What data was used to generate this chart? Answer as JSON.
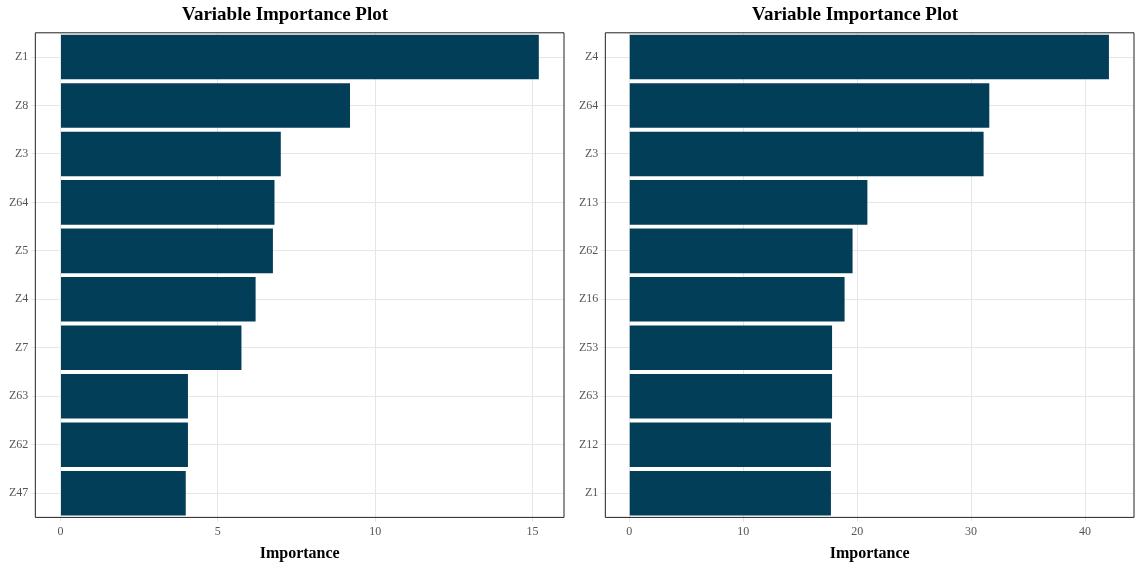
{
  "chart_data": [
    {
      "type": "bar",
      "orientation": "horizontal",
      "title": "Variable Importance Plot",
      "xlabel": "Importance",
      "categories": [
        "Z1",
        "Z8",
        "Z3",
        "Z64",
        "Z5",
        "Z4",
        "Z7",
        "Z63",
        "Z62",
        "Z47"
      ],
      "values": [
        15.2,
        9.2,
        7.0,
        6.8,
        6.75,
        6.2,
        5.75,
        4.05,
        4.05,
        3.98
      ],
      "color": "#023e58",
      "xlim": [
        -0.8,
        16
      ],
      "xticks": [
        0,
        5,
        10,
        15
      ],
      "grid": true
    },
    {
      "type": "bar",
      "orientation": "horizontal",
      "title": "Variable Importance Plot",
      "xlabel": "Importance",
      "categories": [
        "Z4",
        "Z64",
        "Z3",
        "Z13",
        "Z62",
        "Z16",
        "Z53",
        "Z63",
        "Z12",
        "Z1"
      ],
      "values": [
        42.1,
        31.6,
        31.1,
        20.9,
        19.6,
        18.9,
        17.8,
        17.8,
        17.7,
        17.7
      ],
      "color": "#023e58",
      "xlim": [
        -2.1,
        44.3
      ],
      "xticks": [
        0,
        10,
        20,
        30,
        40
      ],
      "grid": true
    }
  ]
}
